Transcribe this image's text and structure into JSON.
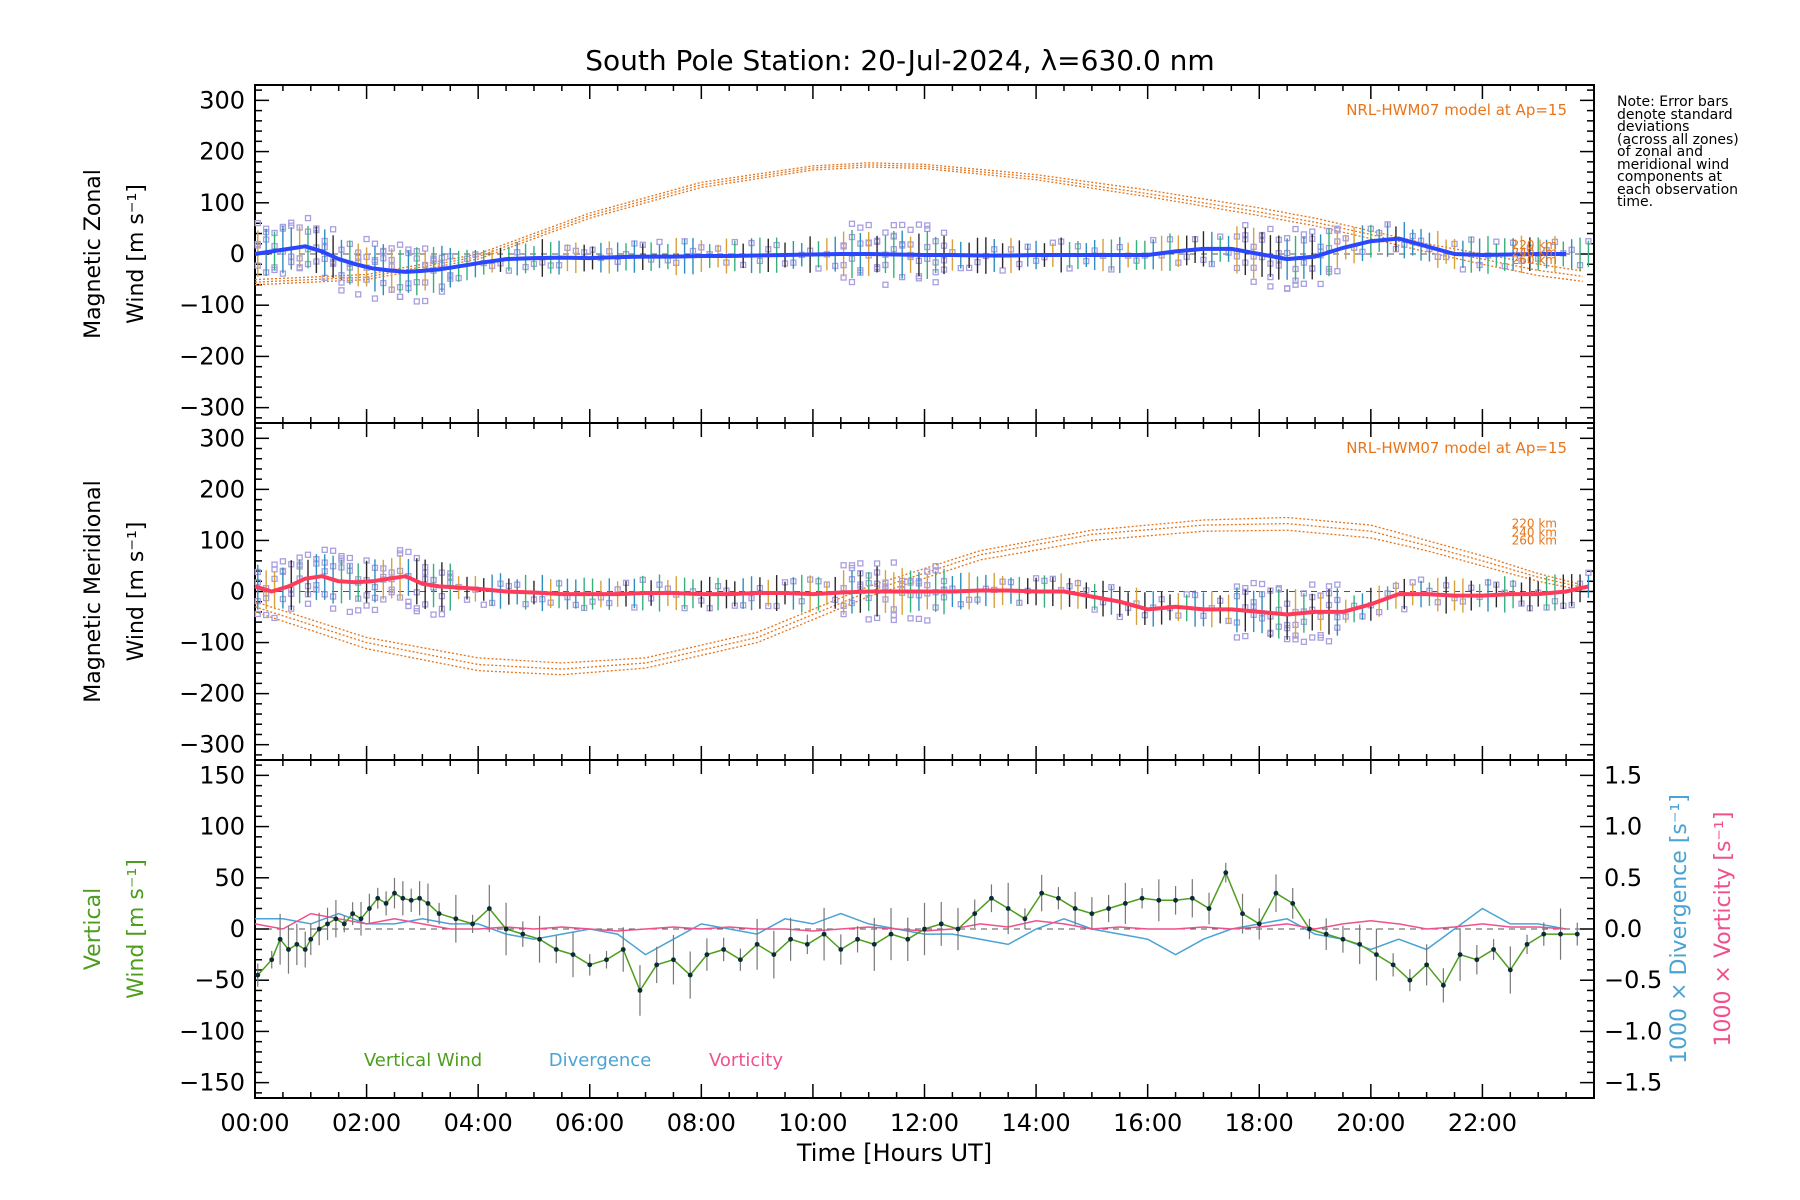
{
  "title": "South Pole Station: 20-Jul-2024, λ=630.0 nm",
  "note": "Note: Error bars\ndenote standard\ndeviations\n(across all zones)\nof zonal and\nmeridional wind\ncomponents at\neach observation\ntime.",
  "colors": {
    "zonal": "#2a46ff",
    "meridional": "#ff3b5c",
    "model": "#e8751a",
    "samples": "#a89fe0",
    "vertical": "#4d9e1c",
    "divergence": "#4aa3d4",
    "vorticity": "#f0508c",
    "points": "#0b2b38"
  },
  "chart_data": [
    {
      "type": "line",
      "panel": "zonal",
      "ylabel_line1": "Magnetic Zonal",
      "ylabel_line2": "Wind [m s⁻¹]",
      "ylim": [
        -330,
        330
      ],
      "yticks": [
        "300",
        "200",
        "100",
        "0",
        "−100",
        "−200",
        "−300"
      ],
      "ytick_values": [
        300,
        200,
        100,
        0,
        -100,
        -200,
        -300
      ],
      "xlim": [
        0,
        24
      ],
      "model_label": "NRL-HWM07 model at Ap=15",
      "model_altitudes": [
        "220 km",
        "240 km",
        "260 km"
      ],
      "series": [
        {
          "name": "Magnetic Zonal Wind",
          "x": [
            0,
            0.3,
            0.6,
            0.9,
            1.2,
            1.5,
            1.8,
            2.1,
            2.4,
            2.7,
            3.0,
            3.3,
            3.6,
            4.0,
            4.5,
            5.0,
            5.5,
            6.0,
            6.5,
            7.0,
            7.5,
            8.0,
            8.5,
            9.0,
            9.5,
            10.0,
            10.5,
            11.0,
            11.5,
            12.0,
            12.5,
            13.0,
            13.5,
            14.0,
            14.5,
            15.0,
            15.5,
            16.0,
            16.5,
            17.0,
            17.5,
            18.0,
            18.5,
            19.0,
            19.5,
            20.0,
            20.5,
            21.0,
            21.5,
            22.0,
            22.5,
            23.0,
            23.5
          ],
          "y": [
            0,
            5,
            10,
            15,
            5,
            -10,
            -20,
            -28,
            -32,
            -35,
            -33,
            -30,
            -25,
            -18,
            -10,
            -8,
            -7,
            -8,
            -6,
            -5,
            -5,
            -4,
            -4,
            -3,
            -2,
            -1,
            0,
            0,
            -1,
            -2,
            -2,
            -3,
            -3,
            -2,
            -2,
            -2,
            -2,
            -2,
            5,
            10,
            10,
            0,
            -10,
            -5,
            12,
            25,
            30,
            15,
            0,
            -2,
            -1,
            0,
            0
          ]
        },
        {
          "name": "HWM07 220 km",
          "x": [
            0,
            2,
            4,
            6,
            8,
            10,
            11,
            12,
            14,
            16,
            18,
            19,
            20,
            21,
            22,
            23,
            23.9
          ],
          "y": [
            -50,
            -40,
            0,
            80,
            140,
            172,
            178,
            175,
            155,
            125,
            90,
            70,
            45,
            20,
            0,
            -20,
            -35
          ]
        },
        {
          "name": "HWM07 240 km",
          "x": [
            0,
            2,
            4,
            6,
            8,
            10,
            11,
            12,
            14,
            16,
            18,
            19,
            20,
            21,
            22,
            23,
            23.9
          ],
          "y": [
            -55,
            -45,
            -5,
            75,
            135,
            168,
            174,
            171,
            150,
            118,
            82,
            62,
            38,
            12,
            -10,
            -32,
            -45
          ]
        },
        {
          "name": "HWM07 260 km",
          "x": [
            0,
            2,
            4,
            6,
            8,
            10,
            11,
            12,
            14,
            16,
            18,
            19,
            20,
            21,
            22,
            23,
            23.9
          ],
          "y": [
            -60,
            -50,
            -10,
            70,
            130,
            164,
            170,
            167,
            145,
            112,
            75,
            55,
            30,
            4,
            -20,
            -42,
            -55
          ]
        }
      ]
    },
    {
      "type": "line",
      "panel": "meridional",
      "ylabel_line1": "Magnetic Meridional",
      "ylabel_line2": "Wind [m s⁻¹]",
      "ylim": [
        -330,
        330
      ],
      "yticks": [
        "300",
        "200",
        "100",
        "0",
        "−100",
        "−200",
        "−300"
      ],
      "ytick_values": [
        300,
        200,
        100,
        0,
        -100,
        -200,
        -300
      ],
      "xlim": [
        0,
        24
      ],
      "model_label": "NRL-HWM07 model at Ap=15",
      "model_altitudes": [
        "220 km",
        "240 km",
        "260 km"
      ],
      "series": [
        {
          "name": "Magnetic Meridional Wind",
          "x": [
            0,
            0.3,
            0.6,
            0.9,
            1.2,
            1.5,
            1.8,
            2.1,
            2.4,
            2.7,
            3.0,
            3.3,
            3.6,
            4.0,
            4.5,
            5.0,
            5.5,
            6.0,
            6.5,
            7.0,
            7.5,
            8.0,
            8.5,
            9.0,
            9.5,
            10.0,
            10.5,
            11.0,
            11.5,
            12.0,
            12.5,
            13.0,
            13.5,
            14.0,
            14.5,
            15.0,
            15.5,
            16.0,
            16.5,
            17.0,
            17.5,
            18.0,
            18.5,
            19.0,
            19.5,
            20.0,
            20.5,
            21.0,
            21.5,
            22.0,
            22.5,
            23.0,
            23.5,
            23.9
          ],
          "y": [
            10,
            0,
            10,
            25,
            30,
            20,
            18,
            20,
            25,
            30,
            15,
            10,
            8,
            5,
            0,
            -2,
            -5,
            -5,
            -5,
            -3,
            -3,
            -5,
            -5,
            -3,
            -3,
            -5,
            -2,
            0,
            0,
            0,
            0,
            2,
            2,
            0,
            0,
            -10,
            -20,
            -35,
            -30,
            -35,
            -35,
            -40,
            -45,
            -40,
            -40,
            -25,
            -5,
            -5,
            -8,
            -8,
            -5,
            -5,
            0,
            10
          ]
        },
        {
          "name": "HWM07 220 km",
          "x": [
            0,
            2,
            4,
            5.5,
            7,
            9,
            11,
            13,
            15,
            17,
            18.5,
            20,
            21,
            22,
            23,
            23.9
          ],
          "y": [
            -20,
            -90,
            -130,
            -140,
            -130,
            -80,
            10,
            80,
            120,
            140,
            145,
            130,
            100,
            70,
            35,
            10
          ]
        },
        {
          "name": "HWM07 240 km",
          "x": [
            0,
            2,
            4,
            5.5,
            7,
            9,
            11,
            13,
            15,
            17,
            18.5,
            20,
            21,
            22,
            23,
            23.9
          ],
          "y": [
            -30,
            -100,
            -143,
            -152,
            -140,
            -90,
            0,
            72,
            112,
            130,
            133,
            118,
            90,
            60,
            28,
            5
          ]
        },
        {
          "name": "HWM07 260 km",
          "x": [
            0,
            2,
            4,
            5.5,
            7,
            9,
            11,
            13,
            15,
            17,
            18.5,
            20,
            21,
            22,
            23,
            23.9
          ],
          "y": [
            -40,
            -112,
            -155,
            -163,
            -150,
            -100,
            -10,
            62,
            100,
            118,
            120,
            105,
            80,
            50,
            20,
            0
          ]
        }
      ]
    },
    {
      "type": "line",
      "panel": "vertical",
      "ylabel_line1": "Vertical",
      "ylabel_line2": "Wind [m s⁻¹]",
      "ylim": [
        -165,
        165
      ],
      "yticks": [
        "150",
        "100",
        "50",
        "0",
        "−50",
        "−100",
        "−150"
      ],
      "ytick_values": [
        150,
        100,
        50,
        0,
        -50,
        -100,
        -150
      ],
      "y2lim": [
        -1.65,
        1.65
      ],
      "y2ticks": [
        "1.5",
        "1.0",
        "0.5",
        "0.0",
        "−0.5",
        "−1.0",
        "−1.5"
      ],
      "y2tick_values": [
        1.5,
        1.0,
        0.5,
        0.0,
        -0.5,
        -1.0,
        -1.5
      ],
      "y2label_divergence": "1000 × Divergence [s⁻¹]",
      "y2label_vorticity": "1000 × Vorticity [s⁻¹]",
      "xlim": [
        0,
        24
      ],
      "xticks": [
        "00:00",
        "02:00",
        "04:00",
        "06:00",
        "08:00",
        "10:00",
        "12:00",
        "14:00",
        "16:00",
        "18:00",
        "20:00",
        "22:00"
      ],
      "xtick_values": [
        0,
        2,
        4,
        6,
        8,
        10,
        12,
        14,
        16,
        18,
        20,
        22
      ],
      "xlabel": "Time [Hours UT]",
      "legend": [
        "Vertical Wind",
        "Divergence",
        "Vorticity"
      ],
      "series": [
        {
          "name": "Vertical Wind",
          "x": [
            0.05,
            0.3,
            0.45,
            0.6,
            0.75,
            0.9,
            1.0,
            1.15,
            1.3,
            1.45,
            1.6,
            1.75,
            1.9,
            2.05,
            2.2,
            2.35,
            2.5,
            2.65,
            2.8,
            2.95,
            3.1,
            3.3,
            3.6,
            3.9,
            4.2,
            4.5,
            4.8,
            5.1,
            5.4,
            5.7,
            6.0,
            6.3,
            6.6,
            6.9,
            7.2,
            7.5,
            7.8,
            8.1,
            8.4,
            8.7,
            9.0,
            9.3,
            9.6,
            9.9,
            10.2,
            10.5,
            10.8,
            11.1,
            11.4,
            11.7,
            12.0,
            12.3,
            12.6,
            12.9,
            13.2,
            13.5,
            13.8,
            14.1,
            14.4,
            14.7,
            15.0,
            15.3,
            15.6,
            15.9,
            16.2,
            16.5,
            16.8,
            17.1,
            17.4,
            17.7,
            18.0,
            18.3,
            18.6,
            18.9,
            19.2,
            19.5,
            19.8,
            20.1,
            20.4,
            20.7,
            21.0,
            21.3,
            21.6,
            21.9,
            22.2,
            22.5,
            22.8,
            23.1,
            23.4,
            23.7
          ],
          "y": [
            -45,
            -30,
            -10,
            -20,
            -15,
            -20,
            -10,
            0,
            5,
            10,
            5,
            15,
            10,
            20,
            30,
            25,
            35,
            30,
            28,
            30,
            25,
            15,
            10,
            5,
            20,
            0,
            -5,
            -10,
            -20,
            -25,
            -35,
            -30,
            -20,
            -60,
            -35,
            -30,
            -45,
            -25,
            -20,
            -30,
            -15,
            -25,
            -10,
            -15,
            -5,
            -20,
            -10,
            -15,
            -5,
            -10,
            0,
            5,
            0,
            15,
            30,
            20,
            10,
            35,
            30,
            20,
            15,
            20,
            25,
            30,
            28,
            28,
            30,
            20,
            55,
            15,
            5,
            35,
            25,
            0,
            -5,
            -10,
            -15,
            -25,
            -35,
            -50,
            -35,
            -55,
            -25,
            -30,
            -20,
            -40,
            -15,
            -5,
            -5,
            -5
          ]
        },
        {
          "name": "Divergence",
          "x": [
            0,
            0.5,
            1,
            1.5,
            2,
            2.5,
            3,
            3.5,
            4,
            4.5,
            5,
            5.5,
            6,
            6.5,
            7,
            7.5,
            8,
            8.5,
            9,
            9.5,
            10,
            10.5,
            11,
            11.5,
            12,
            12.5,
            13,
            13.5,
            14,
            14.5,
            15,
            15.5,
            16,
            16.5,
            17,
            17.5,
            18,
            18.5,
            19,
            19.5,
            20,
            20.5,
            21,
            21.5,
            22,
            22.5,
            23,
            23.5
          ],
          "y": [
            0.1,
            0.1,
            0.05,
            0.15,
            0.05,
            0.05,
            0.1,
            0.05,
            0.05,
            -0.05,
            -0.1,
            -0.05,
            0.0,
            -0.05,
            -0.25,
            -0.1,
            0.05,
            0.0,
            -0.05,
            0.1,
            0.05,
            0.15,
            0.05,
            0.0,
            -0.05,
            -0.05,
            -0.1,
            -0.15,
            0.0,
            0.1,
            0.0,
            -0.05,
            -0.1,
            -0.25,
            -0.1,
            0.0,
            0.05,
            0.1,
            -0.05,
            -0.1,
            -0.2,
            -0.1,
            -0.2,
            0.0,
            0.2,
            0.05,
            0.05,
            0.0
          ]
        },
        {
          "name": "Vorticity",
          "x": [
            0,
            0.5,
            1,
            1.5,
            2,
            2.5,
            3,
            3.5,
            4,
            4.5,
            5,
            5.5,
            6,
            6.5,
            7,
            7.5,
            8,
            8.5,
            9,
            9.5,
            10,
            10.5,
            11,
            11.5,
            12,
            12.5,
            13,
            13.5,
            14,
            14.5,
            15,
            15.5,
            16,
            16.5,
            17,
            17.5,
            18,
            18.5,
            19,
            19.5,
            20,
            20.5,
            21,
            21.5,
            22,
            22.5,
            23,
            23.5
          ],
          "y": [
            0.05,
            0.0,
            0.15,
            0.1,
            0.05,
            0.1,
            0.05,
            0.0,
            0.0,
            0.02,
            0.0,
            0.02,
            0.0,
            -0.02,
            0.0,
            0.02,
            0.0,
            0.02,
            0.0,
            0.0,
            -0.02,
            0.0,
            0.02,
            0.0,
            -0.02,
            0.0,
            0.05,
            0.02,
            0.08,
            0.05,
            0.0,
            0.02,
            0.0,
            0.0,
            0.02,
            0.0,
            0.02,
            0.05,
            0.0,
            0.05,
            0.08,
            0.05,
            0.0,
            0.02,
            0.05,
            0.02,
            0.02,
            0.0
          ]
        }
      ]
    }
  ]
}
